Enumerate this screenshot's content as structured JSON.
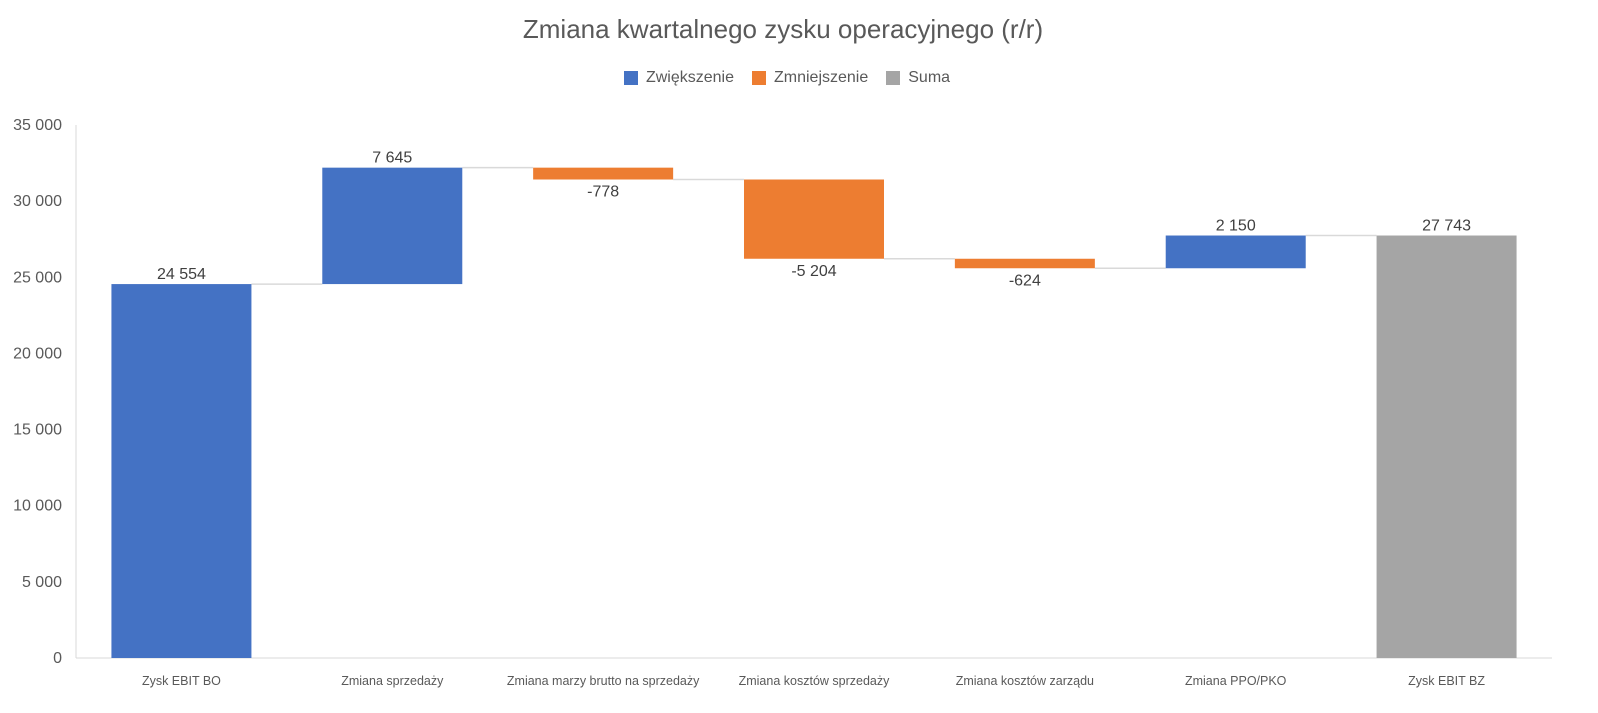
{
  "chart_data": {
    "type": "waterfall",
    "title": "Zmiana kwartalnego zysku operacyjnego (r/r)",
    "categories": [
      "Zysk EBIT BO",
      "Zmiana sprzedaży",
      "Zmiana marzy brutto na sprzedaży",
      "Zmiana kosztów sprzedaży",
      "Zmiana kosztów zarządu",
      "Zmiana PPO/PKO",
      "Zysk EBIT BZ"
    ],
    "values": [
      24554,
      7645,
      -778,
      -5204,
      -624,
      2150,
      27743
    ],
    "value_labels": [
      "24 554",
      "7 645",
      "-778",
      "-5 204",
      "-624",
      "2 150",
      "27 743"
    ],
    "kinds": [
      "increase",
      "increase",
      "decrease",
      "decrease",
      "decrease",
      "increase",
      "total"
    ],
    "legend": [
      {
        "name": "Zwiększenie",
        "color": "#4472C4"
      },
      {
        "name": "Zmniejszenie",
        "color": "#ED7D31"
      },
      {
        "name": "Suma",
        "color": "#A5A5A5"
      }
    ],
    "legend_position": "top",
    "ylim": [
      0,
      35000
    ],
    "yticks": [
      0,
      5000,
      10000,
      15000,
      20000,
      25000,
      30000,
      35000
    ],
    "ytick_labels": [
      "0",
      "5 000",
      "10 000",
      "15 000",
      "20 000",
      "25 000",
      "30 000",
      "35 000"
    ],
    "grid": false,
    "connector_color": "#D9D9D9",
    "axis_color": "#D9D9D9"
  }
}
